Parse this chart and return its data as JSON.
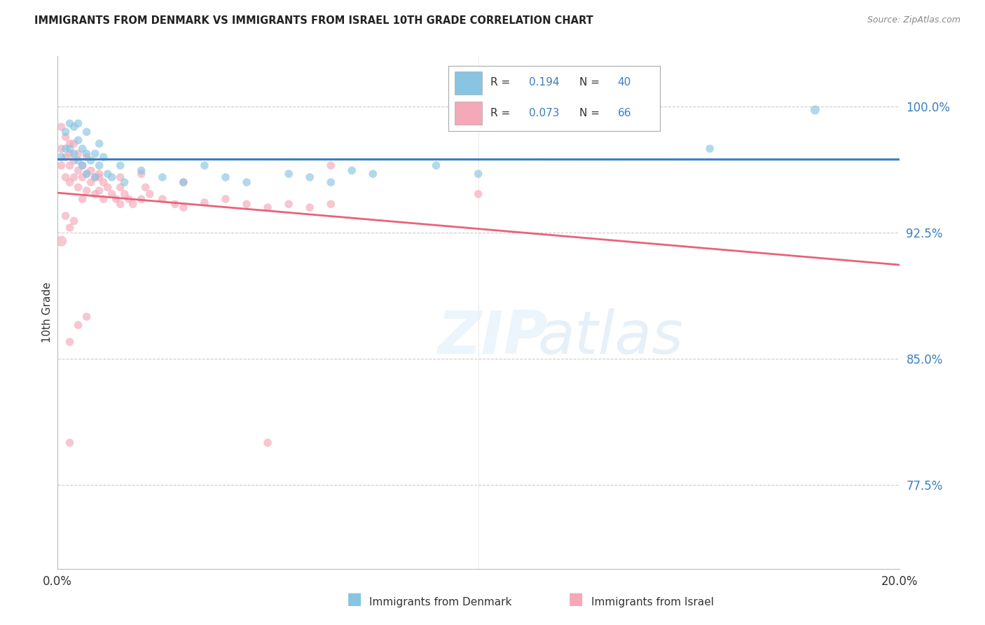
{
  "title": "IMMIGRANTS FROM DENMARK VS IMMIGRANTS FROM ISRAEL 10TH GRADE CORRELATION CHART",
  "source": "Source: ZipAtlas.com",
  "ylabel": "10th Grade",
  "xmin": 0.0,
  "xmax": 0.2,
  "ymin": 0.725,
  "ymax": 1.03,
  "yticks": [
    0.775,
    0.85,
    0.925,
    1.0
  ],
  "ytick_labels": [
    "77.5%",
    "85.0%",
    "92.5%",
    "100.0%"
  ],
  "color_denmark": "#89c4e1",
  "color_israel": "#f4a8b8",
  "trendline_denmark": "#3a7fc1",
  "trendline_israel": "#e8637a",
  "legend_dk_r": "R = ",
  "legend_dk_rv": "0.194",
  "legend_dk_n": "N = ",
  "legend_dk_nv": "40",
  "legend_il_r": "R = ",
  "legend_il_rv": "0.073",
  "legend_il_n": "N = ",
  "legend_il_nv": "66",
  "denmark_x": [
    0.001,
    0.002,
    0.002,
    0.003,
    0.003,
    0.004,
    0.004,
    0.005,
    0.005,
    0.005,
    0.006,
    0.006,
    0.007,
    0.007,
    0.007,
    0.008,
    0.009,
    0.009,
    0.01,
    0.01,
    0.011,
    0.012,
    0.013,
    0.015,
    0.016,
    0.02,
    0.025,
    0.03,
    0.035,
    0.04,
    0.045,
    0.055,
    0.06,
    0.065,
    0.07,
    0.075,
    0.09,
    0.1,
    0.155,
    0.18
  ],
  "denmark_y": [
    0.97,
    0.985,
    0.975,
    0.99,
    0.975,
    0.988,
    0.972,
    0.98,
    0.968,
    0.99,
    0.975,
    0.965,
    0.985,
    0.972,
    0.96,
    0.968,
    0.972,
    0.958,
    0.965,
    0.978,
    0.97,
    0.96,
    0.958,
    0.965,
    0.955,
    0.962,
    0.958,
    0.955,
    0.965,
    0.958,
    0.955,
    0.96,
    0.958,
    0.955,
    0.962,
    0.96,
    0.965,
    0.96,
    0.975,
    0.998
  ],
  "denmark_sizes": [
    80,
    70,
    70,
    70,
    70,
    70,
    70,
    70,
    70,
    70,
    70,
    70,
    70,
    70,
    70,
    70,
    70,
    70,
    70,
    70,
    70,
    70,
    70,
    70,
    70,
    70,
    70,
    70,
    70,
    70,
    70,
    70,
    70,
    70,
    70,
    70,
    70,
    70,
    70,
    90
  ],
  "israel_x": [
    0.001,
    0.001,
    0.001,
    0.002,
    0.002,
    0.002,
    0.003,
    0.003,
    0.003,
    0.003,
    0.004,
    0.004,
    0.004,
    0.005,
    0.005,
    0.005,
    0.006,
    0.006,
    0.006,
    0.007,
    0.007,
    0.007,
    0.008,
    0.008,
    0.009,
    0.009,
    0.01,
    0.01,
    0.011,
    0.011,
    0.012,
    0.013,
    0.014,
    0.015,
    0.015,
    0.016,
    0.017,
    0.018,
    0.02,
    0.021,
    0.022,
    0.025,
    0.028,
    0.03,
    0.035,
    0.04,
    0.045,
    0.05,
    0.055,
    0.06,
    0.065,
    0.001,
    0.002,
    0.003,
    0.004,
    0.01,
    0.02,
    0.03,
    0.065,
    0.1,
    0.003,
    0.005,
    0.007,
    0.015,
    0.003,
    0.05
  ],
  "israel_y": [
    0.975,
    0.965,
    0.988,
    0.97,
    0.982,
    0.958,
    0.978,
    0.965,
    0.955,
    0.972,
    0.968,
    0.958,
    0.978,
    0.972,
    0.962,
    0.952,
    0.965,
    0.958,
    0.945,
    0.97,
    0.96,
    0.95,
    0.962,
    0.955,
    0.958,
    0.948,
    0.96,
    0.95,
    0.955,
    0.945,
    0.952,
    0.948,
    0.945,
    0.952,
    0.942,
    0.948,
    0.945,
    0.942,
    0.945,
    0.952,
    0.948,
    0.945,
    0.942,
    0.94,
    0.943,
    0.945,
    0.942,
    0.94,
    0.942,
    0.94,
    0.942,
    0.92,
    0.935,
    0.928,
    0.932,
    0.958,
    0.96,
    0.955,
    0.965,
    0.948,
    0.86,
    0.87,
    0.875,
    0.958,
    0.8,
    0.8
  ],
  "israel_sizes": [
    70,
    70,
    70,
    70,
    70,
    70,
    70,
    70,
    70,
    70,
    70,
    70,
    70,
    70,
    70,
    70,
    70,
    70,
    70,
    70,
    70,
    70,
    70,
    70,
    70,
    70,
    70,
    70,
    70,
    70,
    70,
    70,
    70,
    70,
    70,
    70,
    70,
    70,
    70,
    70,
    70,
    70,
    70,
    70,
    70,
    70,
    70,
    70,
    70,
    70,
    70,
    120,
    70,
    70,
    70,
    70,
    70,
    70,
    70,
    70,
    70,
    70,
    70,
    70,
    70,
    70
  ]
}
